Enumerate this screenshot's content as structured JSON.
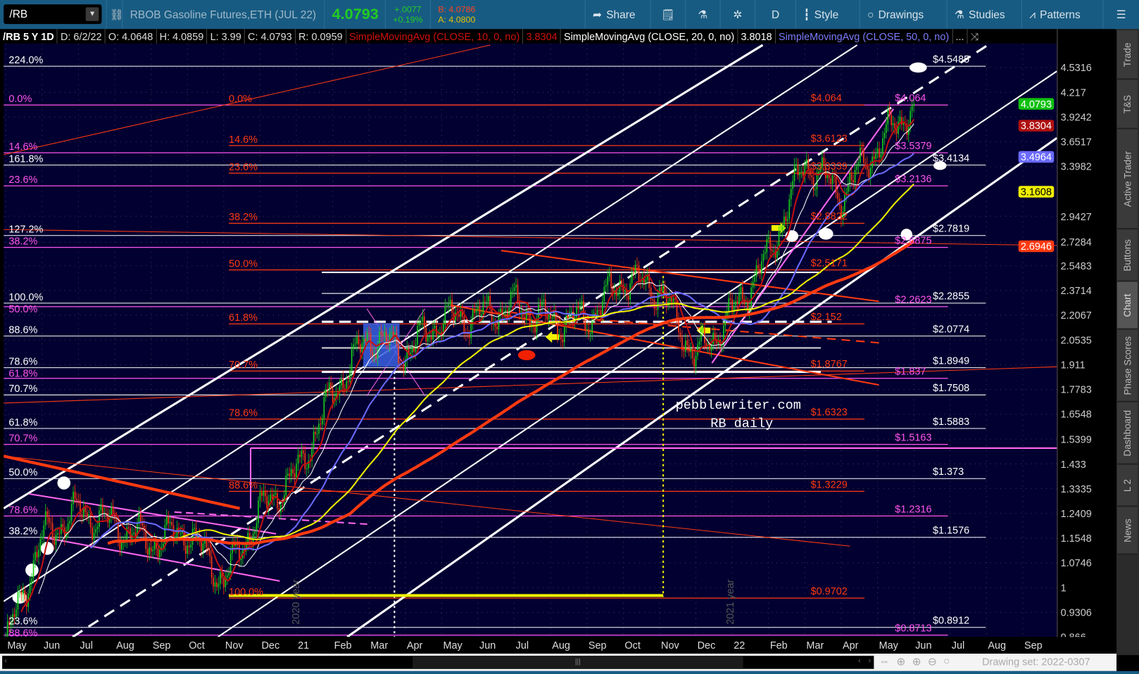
{
  "toolbar": {
    "symbol": "/RB",
    "description": "RBOB Gasoline Futures,ETH (JUL 22)",
    "last": "4.0793",
    "change": "+.0077",
    "change_pct": "+0.19%",
    "bid": "B: 4.0786",
    "ask": "A: 4.0800",
    "share": "Share",
    "aggregation": "D",
    "style": "Style",
    "drawings": "Drawings",
    "studies": "Studies",
    "patterns": "Patterns",
    "colors": {
      "bar": "#185b82",
      "last": "#22cc22",
      "bid": "#ff4422",
      "ask": "#e6c000"
    }
  },
  "info": {
    "title": "/RB 5 Y 1D",
    "date": "D: 6/2/22",
    "open": "O: 4.0648",
    "high": "H: 4.0859",
    "low": "L: 3.99",
    "close": "C: 4.0793",
    "range": "R: 0.0959",
    "sma10_label": "SimpleMovingAvg (CLOSE, 10, 0, no)",
    "sma10_value": "3.8304",
    "sma20_label": "SimpleMovingAvg (CLOSE, 20, 0, no)",
    "sma20_value": "3.8018",
    "sma50_label": "SimpleMovingAvg (CLOSE, 50, 0, no)",
    "more": "..."
  },
  "chart_data": {
    "type": "candlestick",
    "scale": "log",
    "ylim": [
      0.866,
      4.6
    ],
    "price_ticks": [
      "4.5316",
      "4.217",
      "3.9242",
      "3.6517",
      "3.3982",
      "2.9427",
      "2.7284",
      "2.5483",
      "2.3714",
      "2.2067",
      "2.0535",
      "1.911",
      "1.7783",
      "1.6548",
      "1.5399",
      "1.433",
      "1.3335",
      "1.2409",
      "1.1548",
      "1.0746",
      "1",
      "0.9306",
      "0.866"
    ],
    "x_labels": [
      "May",
      "Jun",
      "Jul",
      "Aug",
      "Sep",
      "Oct",
      "Nov",
      "Dec",
      "21",
      "Feb",
      "Mar",
      "Apr",
      "May",
      "Jun",
      "Jul",
      "Aug",
      "Sep",
      "Oct",
      "Nov",
      "Dec",
      "22",
      "Feb",
      "Mar",
      "Apr",
      "May",
      "Jun",
      "Jul",
      "Aug",
      "Sep"
    ],
    "monthly_closes": [
      0.85,
      1.157,
      1.25,
      1.2,
      1.14,
      1.18,
      1.02,
      1.25,
      1.39,
      1.76,
      2.08,
      1.98,
      2.18,
      2.2,
      2.27,
      2.17,
      2.18,
      2.45,
      2.38,
      1.95,
      2.22,
      2.62,
      3.45,
      3.13,
      3.6,
      4.0793
    ],
    "badges": [
      {
        "value": "4.0793",
        "color": "#10c010",
        "text": "#fff"
      },
      {
        "value": "3.8304",
        "color": "#b01010",
        "text": "#fff"
      },
      {
        "value": "3.4964",
        "color": "#6a6aff",
        "text": "#fff"
      },
      {
        "value": "3.1608",
        "color": "#f0f000",
        "text": "#000"
      },
      {
        "value": "2.6946",
        "color": "#ff3a10",
        "text": "#fff"
      }
    ],
    "moving_averages": [
      {
        "period": 10,
        "color": "#c01010"
      },
      {
        "period": 20,
        "color": "#ffffff"
      },
      {
        "period": 50,
        "color": "#6a6aff"
      },
      {
        "period": 100,
        "color": "#f0f000"
      },
      {
        "period": 200,
        "color": "#ff3a10"
      }
    ],
    "fib_white": [
      {
        "pct": "224.0%",
        "price": "$4.5485",
        "value": 4.5485
      },
      {
        "pct": "161.8%",
        "price": "$3.4134",
        "value": 3.4134
      },
      {
        "pct": "127.2%",
        "price": "$2.7819",
        "value": 2.7819
      },
      {
        "pct": "100.0%",
        "price": "$2.2855",
        "value": 2.2855
      },
      {
        "pct": "88.6%",
        "price": "$2.0774",
        "value": 2.0774
      },
      {
        "pct": "78.6%",
        "price": "$1.8949",
        "value": 1.8949
      },
      {
        "pct": "70.7%",
        "price": "$1.7508",
        "value": 1.7508
      },
      {
        "pct": "61.8%",
        "price": "$1.5883",
        "value": 1.5883
      },
      {
        "pct": "50.0%",
        "price": "$1.373",
        "value": 1.373
      },
      {
        "pct": "38.2%",
        "price": "$1.1576",
        "value": 1.1576
      },
      {
        "pct": "23.6%",
        "price": "$0.8912",
        "value": 0.8912
      }
    ],
    "fib_pink": [
      {
        "pct": "0.0%",
        "price": "$4.064",
        "value": 4.064
      },
      {
        "pct": "14.6%",
        "price": "$3.5379",
        "value": 3.5379
      },
      {
        "pct": "23.6%",
        "price": "$3.2136",
        "value": 3.2136
      },
      {
        "pct": "38.2%",
        "price": "$2.6875",
        "value": 2.6875
      },
      {
        "pct": "50.0%",
        "price": "$2.2623",
        "value": 2.2623
      },
      {
        "pct": "61.8%",
        "price": "$1.837",
        "value": 1.837
      },
      {
        "pct": "70.7%",
        "price": "$1.5163",
        "value": 1.5163
      },
      {
        "pct": "78.6%",
        "price": "$1.2316",
        "value": 1.2316
      },
      {
        "pct": "88.6%",
        "price": "$0.8713",
        "value": 0.8713
      }
    ],
    "fib_orange": [
      {
        "pct": "0.0%",
        "price": "$4.064",
        "value": 4.064
      },
      {
        "pct": "14.6%",
        "price": "$3.6123",
        "value": 3.6123
      },
      {
        "pct": "23.6%",
        "price": "$3.3339",
        "value": 3.3339
      },
      {
        "pct": "38.2%",
        "price": "$2.8822",
        "value": 2.8822
      },
      {
        "pct": "50.0%",
        "price": "$2.5171",
        "value": 2.5171
      },
      {
        "pct": "61.8%",
        "price": "$2.152",
        "value": 2.152
      },
      {
        "pct": "70.7%",
        "price": "$1.8767",
        "value": 1.8767
      },
      {
        "pct": "78.6%",
        "price": "$1.6323",
        "value": 1.6323
      },
      {
        "pct": "88.6%",
        "price": "$1.3229",
        "value": 1.3229
      },
      {
        "pct": "100.0%",
        "price": "$0.9702",
        "value": 0.9702
      }
    ],
    "watermark_line1": "pebblewriter.com",
    "watermark_line2": "RB daily",
    "year_label_2020": "2020 year",
    "year_label_2021": "2021 year",
    "colors": {
      "background": "#020030",
      "up": "#18d018",
      "down": "#ff3a10",
      "white_fib": "#ffffff",
      "pink_fib": "#ff55ee",
      "orange_fib": "#ff3a10"
    }
  },
  "sidebar": {
    "tabs": [
      "Trade",
      "T&S",
      "Active Trader",
      "Buttons",
      "Chart",
      "Phase Scores",
      "Dashboard",
      "L 2",
      "News"
    ],
    "selected": "Chart"
  },
  "footer": {
    "drawing_set": "Drawing set: 2022-0307"
  }
}
